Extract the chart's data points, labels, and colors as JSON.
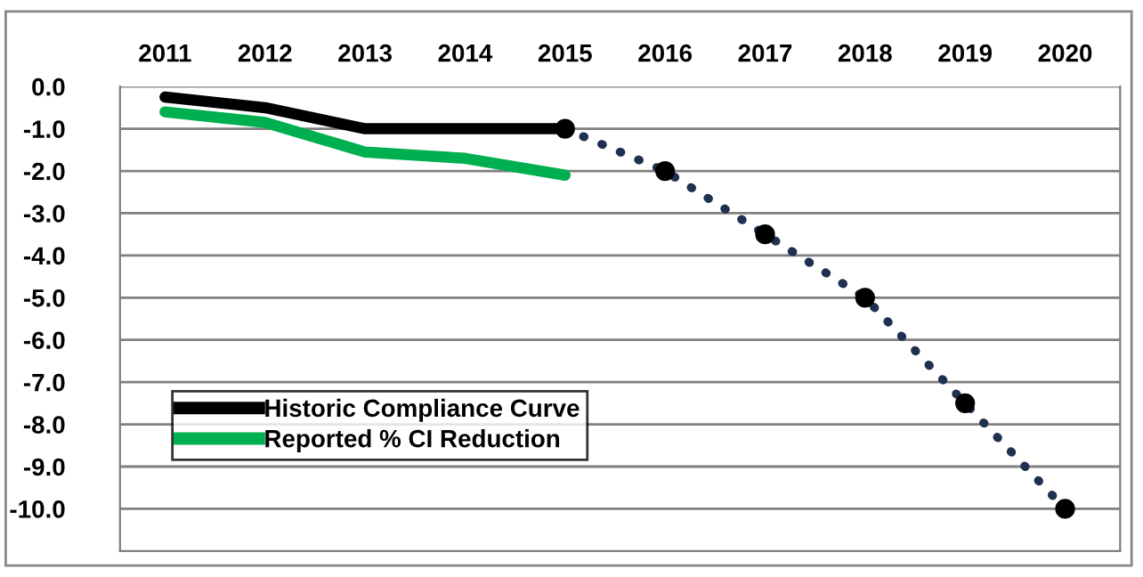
{
  "chart_data": {
    "type": "line",
    "categories": [
      "2011",
      "2012",
      "2013",
      "2014",
      "2015",
      "2016",
      "2017",
      "2018",
      "2019",
      "2020"
    ],
    "series": [
      {
        "name": "Historic Compliance Curve",
        "color": "#000000",
        "values": [
          -0.25,
          -0.5,
          -1.0,
          -1.0,
          -1.0,
          null,
          null,
          null,
          null,
          null
        ],
        "marker": "none",
        "line_style": "solid"
      },
      {
        "name": "Reported % CI Reduction",
        "color": "#00b050",
        "values": [
          -0.6,
          -0.85,
          -1.55,
          -1.7,
          -2.1,
          null,
          null,
          null,
          null,
          null
        ],
        "marker": "none",
        "line_style": "solid"
      },
      {
        "color": "#1f3050",
        "values": [
          null,
          null,
          null,
          null,
          -1.0,
          -2.0,
          -3.5,
          -5.0,
          -7.5,
          -10.0
        ],
        "marker": "circle",
        "line_style": "dotted"
      }
    ],
    "ylim": [
      -11,
      0
    ],
    "yticks": [
      {
        "value": 0,
        "label": "0.0"
      },
      {
        "value": -1,
        "label": "-1.0"
      },
      {
        "value": -2,
        "label": "-2.0"
      },
      {
        "value": -3,
        "label": "-3.0"
      },
      {
        "value": -4,
        "label": "-4.0"
      },
      {
        "value": -5,
        "label": "-5.0"
      },
      {
        "value": -6,
        "label": "-6.0"
      },
      {
        "value": -7,
        "label": "-7.0"
      },
      {
        "value": -8,
        "label": "-8.0"
      },
      {
        "value": -9,
        "label": "-9.0"
      },
      {
        "value": -10,
        "label": "-10.0"
      }
    ],
    "grid": "y",
    "legend": "left"
  }
}
